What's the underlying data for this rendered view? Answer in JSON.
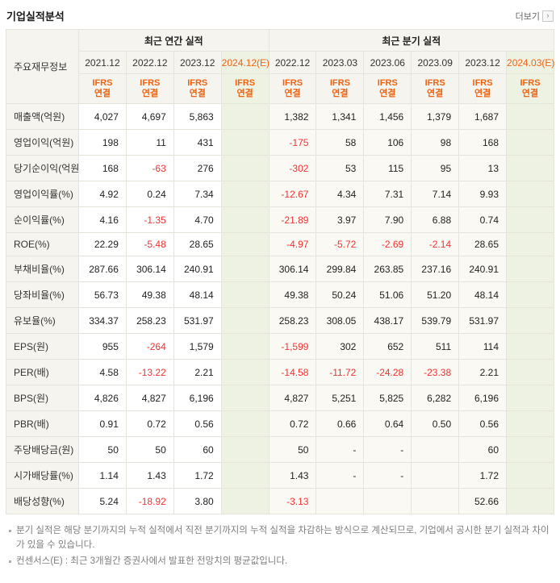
{
  "colors": {
    "accent": "#ee6312",
    "negative": "#f43131",
    "headerBg": "#f5f4ef",
    "estimateBg": "#eef2e2",
    "quarterBg": "#faf9f3",
    "lineColor": "#e6e4da",
    "outerLine": "#d2d0c6"
  },
  "page": {
    "title": "기업실적분석",
    "more_label": "더보기"
  },
  "table": {
    "corner_label": "주요재무정보",
    "ifrs_label": "IFRS\n연결",
    "groups": [
      {
        "label": "최근 연간 실적",
        "span": 4
      },
      {
        "label": "최근 분기 실적",
        "span": 6
      }
    ],
    "columns": [
      {
        "label": "2021.12",
        "estimate": false,
        "section": "annual"
      },
      {
        "label": "2022.12",
        "estimate": false,
        "section": "annual"
      },
      {
        "label": "2023.12",
        "estimate": false,
        "section": "annual"
      },
      {
        "label": "2024.12(E)",
        "estimate": true,
        "section": "annual"
      },
      {
        "label": "2022.12",
        "estimate": false,
        "section": "quarter"
      },
      {
        "label": "2023.03",
        "estimate": false,
        "section": "quarter"
      },
      {
        "label": "2023.06",
        "estimate": false,
        "section": "quarter"
      },
      {
        "label": "2023.09",
        "estimate": false,
        "section": "quarter"
      },
      {
        "label": "2023.12",
        "estimate": false,
        "section": "quarter"
      },
      {
        "label": "2024.03(E)",
        "estimate": true,
        "section": "quarter"
      }
    ],
    "rows": [
      {
        "label": "매출액(억원)",
        "values": [
          "4,027",
          "4,697",
          "5,863",
          "",
          "1,382",
          "1,341",
          "1,456",
          "1,379",
          "1,687",
          ""
        ]
      },
      {
        "label": "영업이익(억원)",
        "values": [
          "198",
          "11",
          "431",
          "",
          "-175",
          "58",
          "106",
          "98",
          "168",
          ""
        ]
      },
      {
        "label": "당기순이익(억원)",
        "values": [
          "168",
          "-63",
          "276",
          "",
          "-302",
          "53",
          "115",
          "95",
          "13",
          ""
        ]
      },
      {
        "label": "영업이익률(%)",
        "values": [
          "4.92",
          "0.24",
          "7.34",
          "",
          "-12.67",
          "4.34",
          "7.31",
          "7.14",
          "9.93",
          ""
        ]
      },
      {
        "label": "순이익률(%)",
        "values": [
          "4.16",
          "-1.35",
          "4.70",
          "",
          "-21.89",
          "3.97",
          "7.90",
          "6.88",
          "0.74",
          ""
        ]
      },
      {
        "label": "ROE(%)",
        "values": [
          "22.29",
          "-5.48",
          "28.65",
          "",
          "-4.97",
          "-5.72",
          "-2.69",
          "-2.14",
          "28.65",
          ""
        ]
      },
      {
        "label": "부채비율(%)",
        "values": [
          "287.66",
          "306.14",
          "240.91",
          "",
          "306.14",
          "299.84",
          "263.85",
          "237.16",
          "240.91",
          ""
        ]
      },
      {
        "label": "당좌비율(%)",
        "values": [
          "56.73",
          "49.38",
          "48.14",
          "",
          "49.38",
          "50.24",
          "51.06",
          "51.20",
          "48.14",
          ""
        ]
      },
      {
        "label": "유보율(%)",
        "values": [
          "334.37",
          "258.23",
          "531.97",
          "",
          "258.23",
          "308.05",
          "438.17",
          "539.79",
          "531.97",
          ""
        ]
      },
      {
        "label": "EPS(원)",
        "values": [
          "955",
          "-264",
          "1,579",
          "",
          "-1,599",
          "302",
          "652",
          "511",
          "114",
          ""
        ]
      },
      {
        "label": "PER(배)",
        "values": [
          "4.58",
          "-13.22",
          "2.21",
          "",
          "-14.58",
          "-11.72",
          "-24.28",
          "-23.38",
          "2.21",
          ""
        ]
      },
      {
        "label": "BPS(원)",
        "values": [
          "4,826",
          "4,827",
          "6,196",
          "",
          "4,827",
          "5,251",
          "5,825",
          "6,282",
          "6,196",
          ""
        ]
      },
      {
        "label": "PBR(배)",
        "values": [
          "0.91",
          "0.72",
          "0.56",
          "",
          "0.72",
          "0.66",
          "0.64",
          "0.50",
          "0.56",
          ""
        ]
      },
      {
        "label": "주당배당금(원)",
        "values": [
          "50",
          "50",
          "60",
          "",
          "50",
          "-",
          "-",
          "",
          "60",
          ""
        ]
      },
      {
        "label": "시가배당률(%)",
        "values": [
          "1.14",
          "1.43",
          "1.72",
          "",
          "1.43",
          "-",
          "-",
          "",
          "1.72",
          ""
        ]
      },
      {
        "label": "배당성향(%)",
        "values": [
          "5.24",
          "-18.92",
          "3.80",
          "",
          "-3.13",
          "",
          "",
          "",
          "52.66",
          ""
        ]
      }
    ]
  },
  "footnotes": [
    "분기 실적은 해당 분기까지의 누적 실적에서 직전 분기까지의 누적 실적을 차감하는 방식으로 계산되므로, 기업에서 공시한 분기 실적과 차이가 있을 수 있습니다.",
    "컨센서스(E) : 최근 3개월간 증권사에서 발표한 전망치의 평균값입니다."
  ]
}
